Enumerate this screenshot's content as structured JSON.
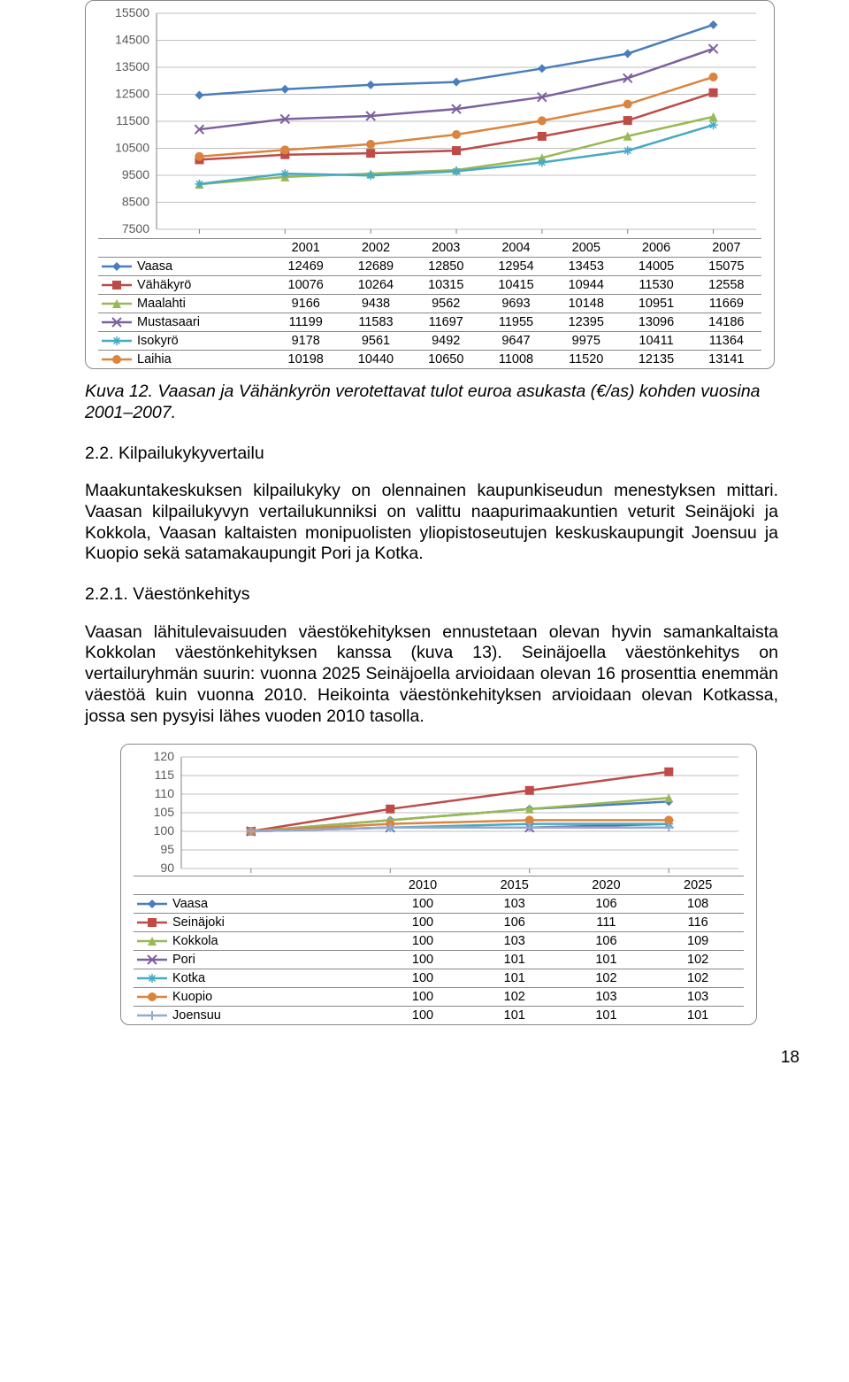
{
  "chart1": {
    "type": "line",
    "years": [
      "2001",
      "2002",
      "2003",
      "2004",
      "2005",
      "2006",
      "2007"
    ],
    "ylim": [
      7500,
      15500
    ],
    "ytick_step": 1000,
    "yticks": [
      7500,
      8500,
      9500,
      10500,
      11500,
      12500,
      13500,
      14500,
      15500
    ],
    "background_color": "#ffffff",
    "grid_color": "#bfbfbf",
    "axis_color": "#808080",
    "tick_fontsize": 14,
    "series": [
      {
        "key": "vaasa",
        "label": "Vaasa",
        "color": "#4a7ebb",
        "marker": "diamond",
        "values": [
          12469,
          12689,
          12850,
          12954,
          13453,
          14005,
          15075
        ]
      },
      {
        "key": "vahakyro",
        "label": "Vähäkyrö",
        "color": "#be4b48",
        "marker": "square",
        "values": [
          10076,
          10264,
          10315,
          10415,
          10944,
          11530,
          12558
        ]
      },
      {
        "key": "maalahti",
        "label": "Maalahti",
        "color": "#98b954",
        "marker": "triangle",
        "values": [
          9166,
          9438,
          9562,
          9693,
          10148,
          10951,
          11669
        ]
      },
      {
        "key": "mustasaari",
        "label": "Mustasaari",
        "color": "#7d60a0",
        "marker": "x",
        "values": [
          11199,
          11583,
          11697,
          11955,
          12395,
          13096,
          14186
        ]
      },
      {
        "key": "isokyro",
        "label": "Isokyrö",
        "color": "#46aac5",
        "marker": "star",
        "values": [
          9178,
          9561,
          9492,
          9647,
          9975,
          10411,
          11364
        ]
      },
      {
        "key": "laihia",
        "label": "Laihia",
        "color": "#db843d",
        "marker": "circle",
        "values": [
          10198,
          10440,
          10650,
          11008,
          11520,
          12135,
          13141
        ]
      }
    ]
  },
  "caption1_prefix": "Kuva 12. ",
  "caption1_body": "Vaasan ja Vähänkyrön verotettavat tulot euroa asukasta (€/as) kohden vuosina 2001–2007.",
  "heading22": "2.2. Kilpailukykyvertailu",
  "para1": "Maakuntakeskuksen kilpailukyky on olennainen kaupunkiseudun menestyksen mittari. Vaasan kilpailukyvyn vertailukunniksi on valittu naapurimaakuntien veturit Seinäjoki ja Kokkola, Vaasan kaltaisten monipuolisten yliopistoseutujen keskuskaupungit Joensuu ja Kuopio sekä satamakaupungit Pori ja Kotka.",
  "heading221": "2.2.1. Väestönkehitys",
  "para2": "Vaasan lähitulevaisuuden väestökehityksen ennustetaan olevan hyvin samankaltaista Kokkolan väestönkehityksen kanssa (kuva 13). Seinäjoella väestönkehitys on vertailuryhmän suurin: vuonna 2025 Seinäjoella arvioidaan olevan 16 prosenttia enemmän väestöä kuin vuonna 2010. Heikointa väestönkehityksen arvioidaan olevan Kotkassa, jossa sen pysyisi lähes vuoden 2010 tasolla.",
  "chart2": {
    "type": "line",
    "years": [
      "2010",
      "2015",
      "2020",
      "2025"
    ],
    "ylim": [
      90,
      120
    ],
    "ytick_step": 5,
    "yticks": [
      90,
      95,
      100,
      105,
      110,
      115,
      120
    ],
    "background_color": "#ffffff",
    "grid_color": "#bfbfbf",
    "axis_color": "#808080",
    "tick_fontsize": 14,
    "series": [
      {
        "key": "vaasa",
        "label": "Vaasa",
        "color": "#4a7ebb",
        "marker": "diamond",
        "values": [
          100,
          103,
          106,
          108
        ]
      },
      {
        "key": "seinajoki",
        "label": "Seinäjoki",
        "color": "#be4b48",
        "marker": "square",
        "values": [
          100,
          106,
          111,
          116
        ]
      },
      {
        "key": "kokkola",
        "label": "Kokkola",
        "color": "#98b954",
        "marker": "triangle",
        "values": [
          100,
          103,
          106,
          109
        ]
      },
      {
        "key": "pori",
        "label": "Pori",
        "color": "#7d60a0",
        "marker": "x",
        "values": [
          100,
          101,
          101,
          102
        ]
      },
      {
        "key": "kotka",
        "label": "Kotka",
        "color": "#46aac5",
        "marker": "star",
        "values": [
          100,
          101,
          102,
          102
        ]
      },
      {
        "key": "kuopio",
        "label": "Kuopio",
        "color": "#db843d",
        "marker": "circle",
        "values": [
          100,
          102,
          103,
          103
        ]
      },
      {
        "key": "joensuu",
        "label": "Joensuu",
        "color": "#93a9cf",
        "marker": "plus",
        "values": [
          100,
          101,
          101,
          101
        ]
      }
    ]
  },
  "pagenum": "18"
}
